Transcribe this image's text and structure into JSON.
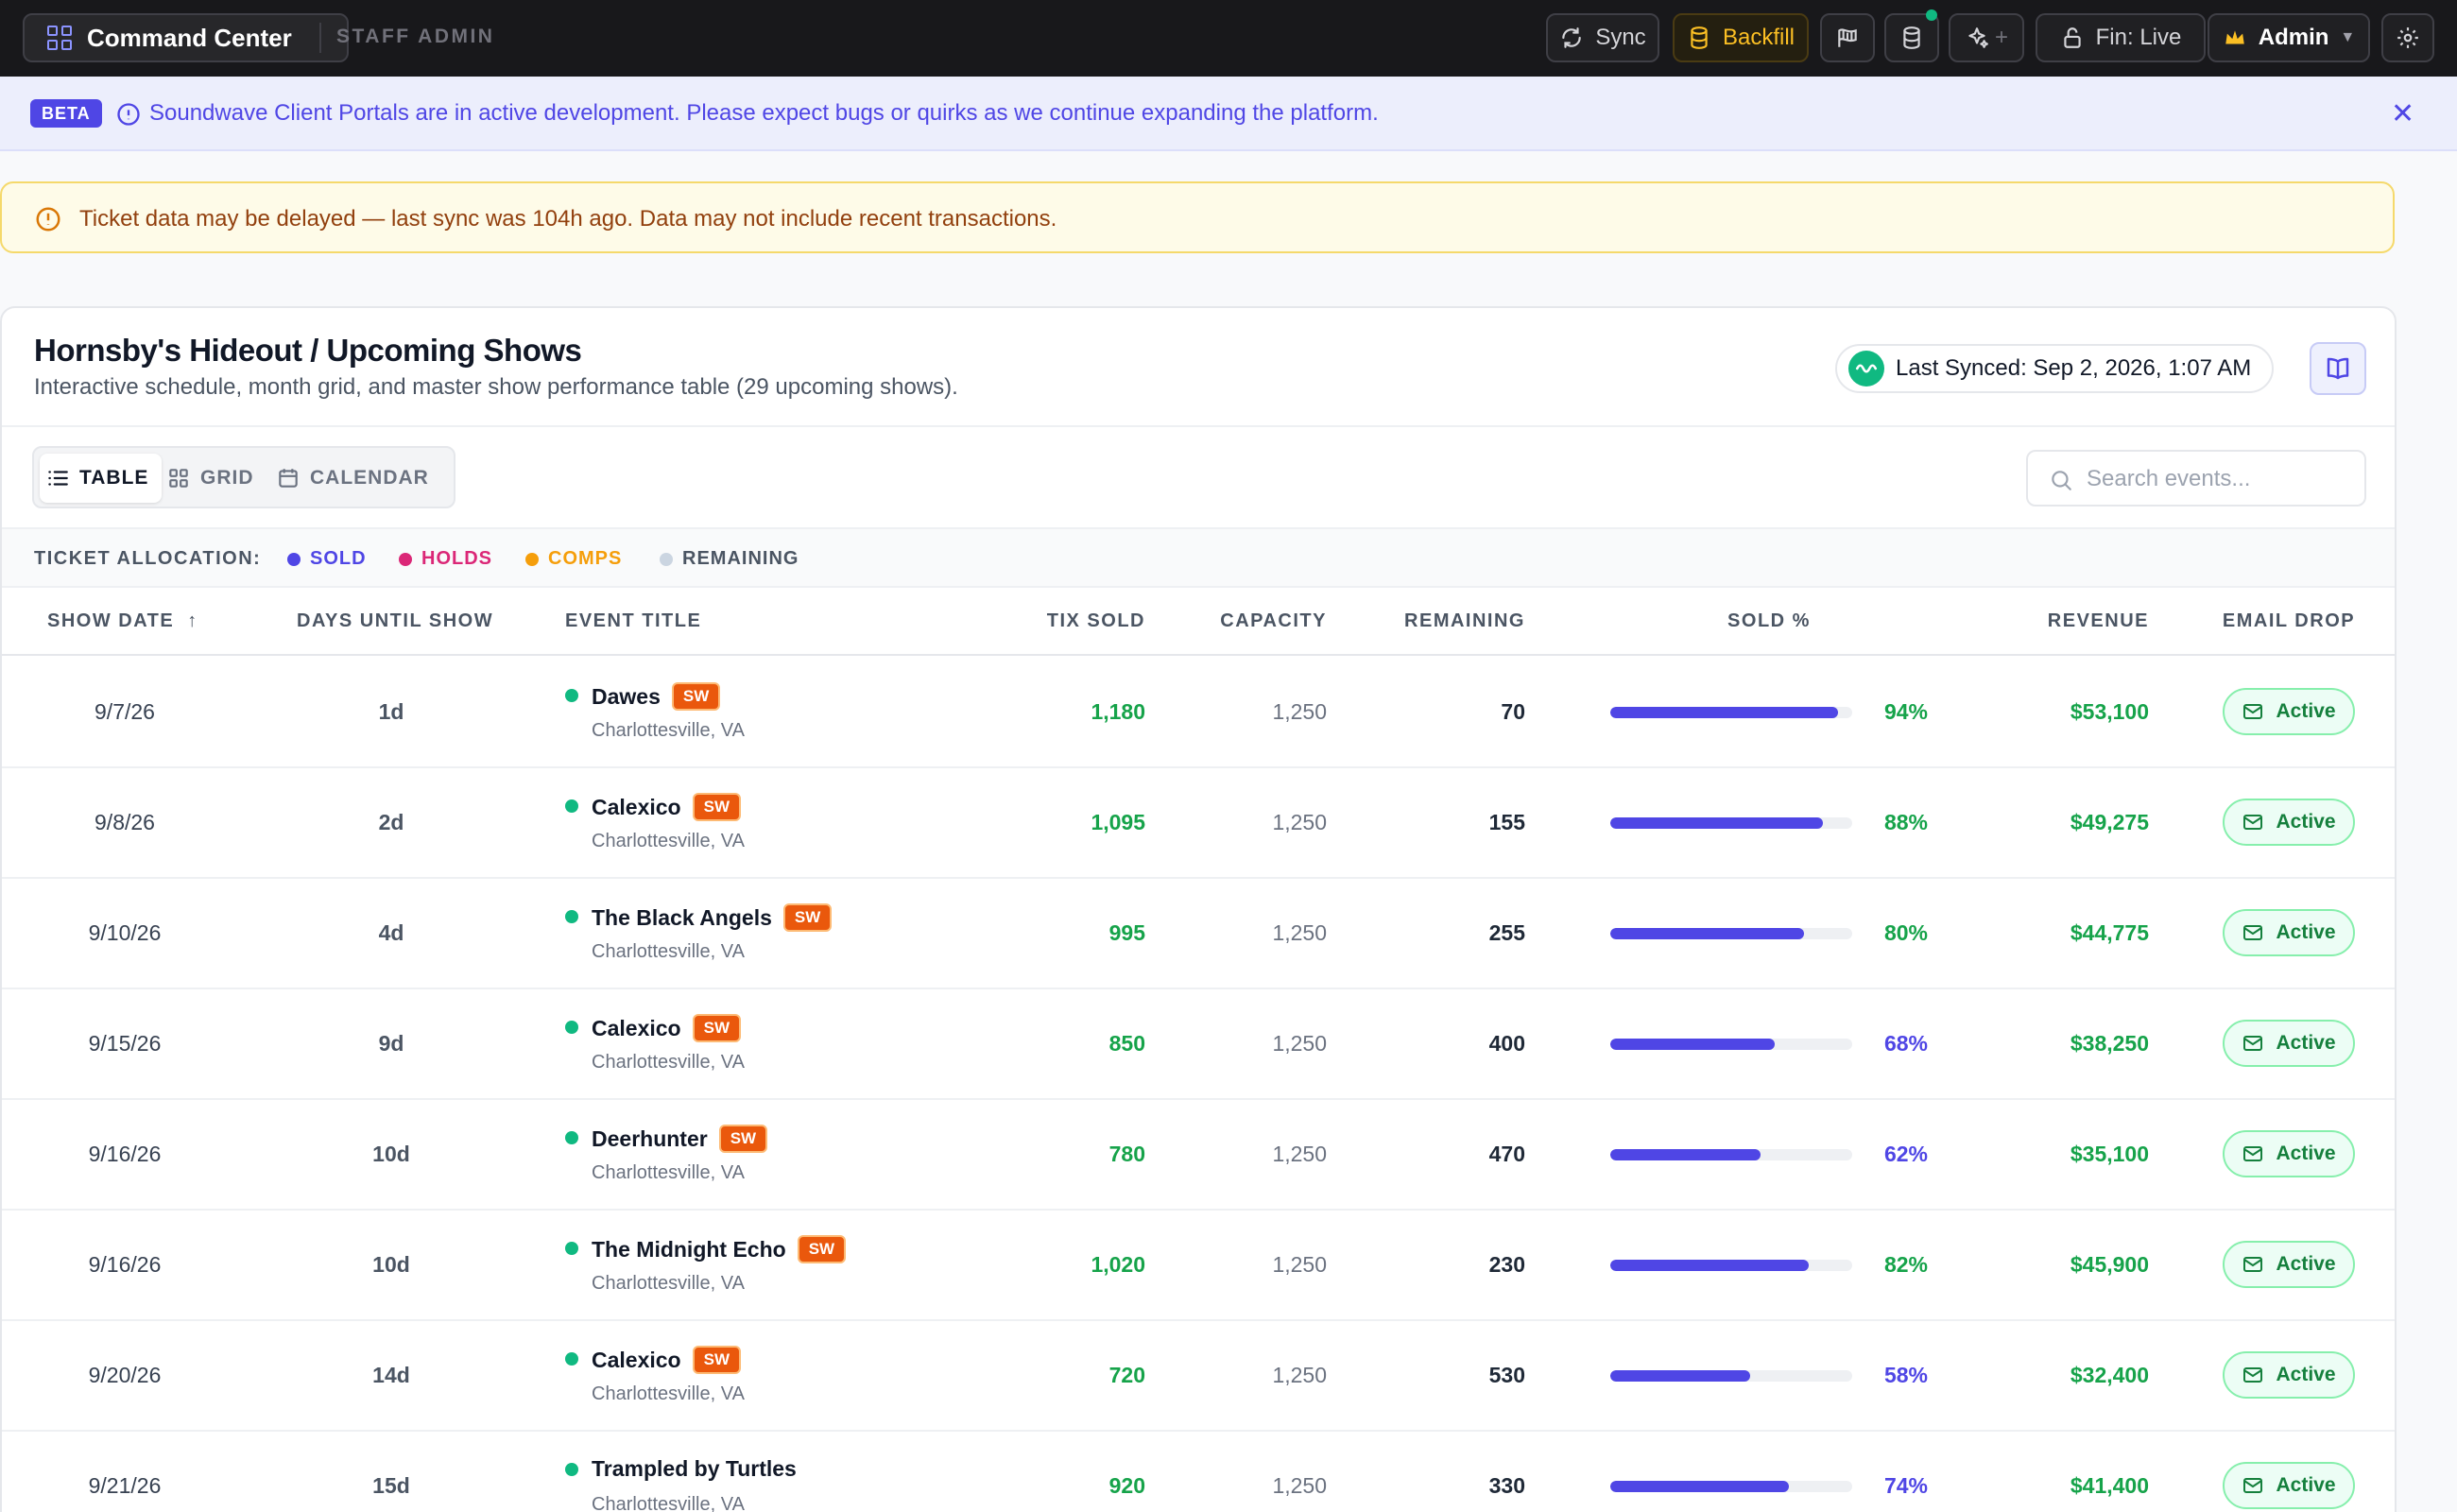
{
  "topbar": {
    "app_button": "Command Center",
    "staff_label": "STAFF ADMIN",
    "sync": "Sync",
    "backfill": "Backfill",
    "ai_plus": "+",
    "fin_status": "Fin: Live",
    "admin": "Admin",
    "admin_caret": "▼"
  },
  "beta": {
    "badge": "BETA",
    "message": "Soundwave Client Portals are in active development. Please expect bugs or quirks as we continue expanding the platform.",
    "close": "✕"
  },
  "warning": {
    "message": "Ticket data may be delayed — last sync was 104h ago. Data may not include recent transactions."
  },
  "card": {
    "title": "Hornsby's Hideout / Upcoming Shows",
    "subtitle": "Interactive schedule, month grid, and master show performance table (29 upcoming shows).",
    "last_synced": "Last Synced: Sep 2, 2026, 1:07 AM"
  },
  "views": {
    "table": "TABLE",
    "grid": "GRID",
    "calendar": "CALENDAR",
    "selected": "TABLE"
  },
  "search": {
    "placeholder": "Search events..."
  },
  "allocation": {
    "label": "TICKET ALLOCATION:",
    "items": [
      {
        "label": "SOLD",
        "color": "#4f46e5"
      },
      {
        "label": "HOLDS",
        "color": "#db2777"
      },
      {
        "label": "COMPS",
        "color": "#f59e0b"
      },
      {
        "label": "REMAINING",
        "color": "#cbd5e1"
      }
    ]
  },
  "table": {
    "headers": {
      "show_date": "SHOW DATE",
      "days_until": "DAYS UNTIL SHOW",
      "event_title": "EVENT TITLE",
      "tix_sold": "TIX SOLD",
      "capacity": "CAPACITY",
      "remaining": "REMAINING",
      "sold_pct": "SOLD %",
      "revenue": "REVENUE",
      "email_drop": "EMAIL DROP"
    },
    "sort_indicator": "↑",
    "rows": [
      {
        "date": "9/7/26",
        "days": "1d",
        "title": "Dawes",
        "badge": "SW",
        "location": "Charlottesville, VA",
        "sold": "1,180",
        "capacity": "1,250",
        "remaining": "70",
        "pct": "94%",
        "pct_value": 94,
        "pct_color": "#16a34a",
        "revenue": "$53,100",
        "email": "Active"
      },
      {
        "date": "9/8/26",
        "days": "2d",
        "title": "Calexico",
        "badge": "SW",
        "location": "Charlottesville, VA",
        "sold": "1,095",
        "capacity": "1,250",
        "remaining": "155",
        "pct": "88%",
        "pct_value": 88,
        "pct_color": "#16a34a",
        "revenue": "$49,275",
        "email": "Active"
      },
      {
        "date": "9/10/26",
        "days": "4d",
        "title": "The Black Angels",
        "badge": "SW",
        "location": "Charlottesville, VA",
        "sold": "995",
        "capacity": "1,250",
        "remaining": "255",
        "pct": "80%",
        "pct_value": 80,
        "pct_color": "#16a34a",
        "revenue": "$44,775",
        "email": "Active"
      },
      {
        "date": "9/15/26",
        "days": "9d",
        "title": "Calexico",
        "badge": "SW",
        "location": "Charlottesville, VA",
        "sold": "850",
        "capacity": "1,250",
        "remaining": "400",
        "pct": "68%",
        "pct_value": 68,
        "pct_color": "#4f46e5",
        "revenue": "$38,250",
        "email": "Active"
      },
      {
        "date": "9/16/26",
        "days": "10d",
        "title": "Deerhunter",
        "badge": "SW",
        "location": "Charlottesville, VA",
        "sold": "780",
        "capacity": "1,250",
        "remaining": "470",
        "pct": "62%",
        "pct_value": 62,
        "pct_color": "#4f46e5",
        "revenue": "$35,100",
        "email": "Active"
      },
      {
        "date": "9/16/26",
        "days": "10d",
        "title": "The Midnight Echo",
        "badge": "SW",
        "location": "Charlottesville, VA",
        "sold": "1,020",
        "capacity": "1,250",
        "remaining": "230",
        "pct": "82%",
        "pct_value": 82,
        "pct_color": "#16a34a",
        "revenue": "$45,900",
        "email": "Active"
      },
      {
        "date": "9/20/26",
        "days": "14d",
        "title": "Calexico",
        "badge": "SW",
        "location": "Charlottesville, VA",
        "sold": "720",
        "capacity": "1,250",
        "remaining": "530",
        "pct": "58%",
        "pct_value": 58,
        "pct_color": "#4f46e5",
        "revenue": "$32,400",
        "email": "Active"
      },
      {
        "date": "9/21/26",
        "days": "15d",
        "title": "Trampled by Turtles",
        "badge": "",
        "location": "Charlottesville, VA",
        "sold": "920",
        "capacity": "1,250",
        "remaining": "330",
        "pct": "74%",
        "pct_value": 74,
        "pct_color": "#4f46e5",
        "revenue": "$41,400",
        "email": "Active"
      }
    ]
  }
}
